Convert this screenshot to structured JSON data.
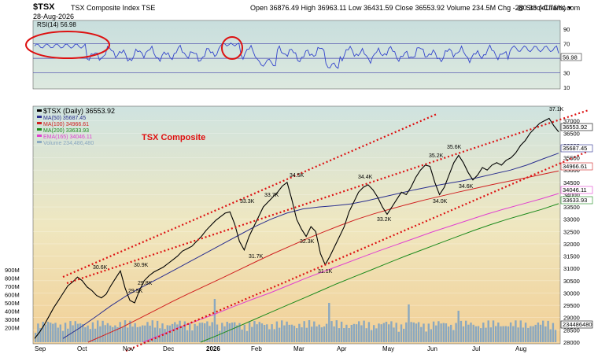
{
  "header": {
    "symbol": "$TSX",
    "name": "TSX Composite Index  TSE",
    "date": "28-Aug-2026",
    "ohlc": "Open 36876.49  High 36963.11  Low 36431.59  Close 36553.92  Volume 234.5M  Chg -280.33 (-0.76%) ▾",
    "credit": "@ StockCharts.com"
  },
  "chart_data": [
    {
      "type": "line",
      "name": "rsi-panel",
      "title": "RSI(14) 56.98",
      "ylim": [
        10,
        100
      ],
      "yticks": [
        90,
        70,
        50,
        30,
        10
      ],
      "guides": [
        70,
        50,
        30
      ],
      "last_value_label": "56.98",
      "colors": {
        "line": "#3344cc",
        "fill": "#5aa0c8",
        "guide": "#4444aa"
      }
    },
    {
      "type": "line",
      "name": "price-panel",
      "title": "TSX Composite",
      "xlabels": [
        "Sep",
        "Oct",
        "Nov",
        "Dec",
        "2026",
        "Feb",
        "Mar",
        "Apr",
        "May",
        "Jun",
        "Jul",
        "Aug"
      ],
      "ylim": [
        28000,
        37500
      ],
      "yticks": [
        37000,
        36500,
        36000,
        35500,
        35000,
        34500,
        34000,
        33500,
        33000,
        32500,
        32000,
        31500,
        31000,
        30500,
        30000,
        29500,
        29000,
        28500,
        28000
      ],
      "volume_ticks": [
        "900M",
        "800M",
        "700M",
        "600M",
        "500M",
        "400M",
        "300M",
        "200M"
      ],
      "legend": [
        {
          "label": "$TSX (Daily) 36553.92",
          "color": "#000000"
        },
        {
          "label": "MA(50) 35687.45",
          "color": "#2a2f8f"
        },
        {
          "label": "MA(100) 34966.61",
          "color": "#d02020"
        },
        {
          "label": "MA(200) 33633.93",
          "color": "#1c8a1c"
        },
        {
          "label": "EMA(165) 34046.11",
          "color": "#e040d0"
        },
        {
          "label": "Volume 234,486,480",
          "color": "#8aa8c0"
        }
      ],
      "last_labels": [
        "36553.92",
        "35687.45",
        "34966.61",
        "34046.11",
        "33633.93",
        "234486480"
      ],
      "annotations": [
        "30.6K",
        "30.9K",
        "29.8K",
        "29.5K",
        "33.3K",
        "33.7K",
        "31.7K",
        "34.5K",
        "32.3K",
        "31.1K",
        "34.4K",
        "33.2K",
        "35.2K",
        "35.6K",
        "34.0K",
        "34.6K",
        "37.1K"
      ],
      "series": [
        {
          "name": "$TSX (Daily)",
          "values": [
            28150,
            28400,
            28700,
            29050,
            29400,
            29700,
            30000,
            30300,
            30450,
            30650,
            30500,
            30250,
            30100,
            29900,
            29800,
            29950,
            30300,
            30600,
            30900,
            30200,
            29700,
            29600,
            30100,
            30500,
            30700,
            30850,
            30950,
            31050,
            31200,
            31350,
            31500,
            31700,
            31800,
            31900,
            32100,
            32300,
            32550,
            32750,
            32950,
            33100,
            33250,
            33300,
            32800,
            32100,
            31750,
            32300,
            32700,
            33100,
            33500,
            33700,
            33900,
            34100,
            34350,
            34500,
            33800,
            33000,
            32600,
            32300,
            32700,
            32500,
            31600,
            31150,
            31500,
            31900,
            32300,
            32700,
            33300,
            33700,
            34100,
            34300,
            34400,
            34200,
            33900,
            33500,
            33200,
            33500,
            33800,
            34100,
            34000,
            34300,
            34700,
            35000,
            35200,
            35150,
            34500,
            34000,
            34300,
            34800,
            35300,
            35600,
            35300,
            34900,
            34600,
            34800,
            35100,
            35000,
            35200,
            35300,
            35200,
            35400,
            35500,
            35700,
            36000,
            36200,
            36500,
            36700,
            36900,
            37000,
            37100,
            36800,
            36553.92
          ]
        },
        {
          "name": "MA(50)",
          "values": [
            28150,
            28560,
            29010,
            29480,
            29900,
            30260,
            30600,
            30950,
            31300,
            31650,
            32000,
            32350,
            32700,
            33000,
            33250,
            33420,
            33500,
            33550,
            33620,
            33750,
            33900,
            34050,
            34200,
            34330,
            34450,
            34560,
            34700,
            34850,
            35000,
            35200,
            35450,
            35687.45
          ]
        },
        {
          "name": "MA(100)",
          "values": [
            28000,
            28300,
            28600,
            28950,
            29300,
            29650,
            29980,
            30300,
            30620,
            30950,
            31280,
            31600,
            31900,
            32200,
            32480,
            32750,
            33000,
            33220,
            33420,
            33600,
            33780,
            33940,
            34100,
            34250,
            34400,
            34540,
            34680,
            34820,
            34966.61
          ]
        },
        {
          "name": "MA(200)",
          "values": [
            28000,
            28280,
            28580,
            28880,
            29180,
            29480,
            29780,
            30080,
            30380,
            30660,
            30940,
            31220,
            31500,
            31760,
            32020,
            32280,
            32540,
            32780,
            33000,
            33200,
            33400,
            33633.93
          ]
        },
        {
          "name": "EMA(165)",
          "values": [
            28000,
            28300,
            28600,
            28880,
            29150,
            29450,
            29730,
            30000,
            30300,
            30600,
            30880,
            31150,
            31430,
            31700,
            31960,
            32220,
            32480,
            32720,
            32960,
            33200,
            33420,
            33620,
            33820,
            34046.11
          ]
        }
      ]
    }
  ]
}
